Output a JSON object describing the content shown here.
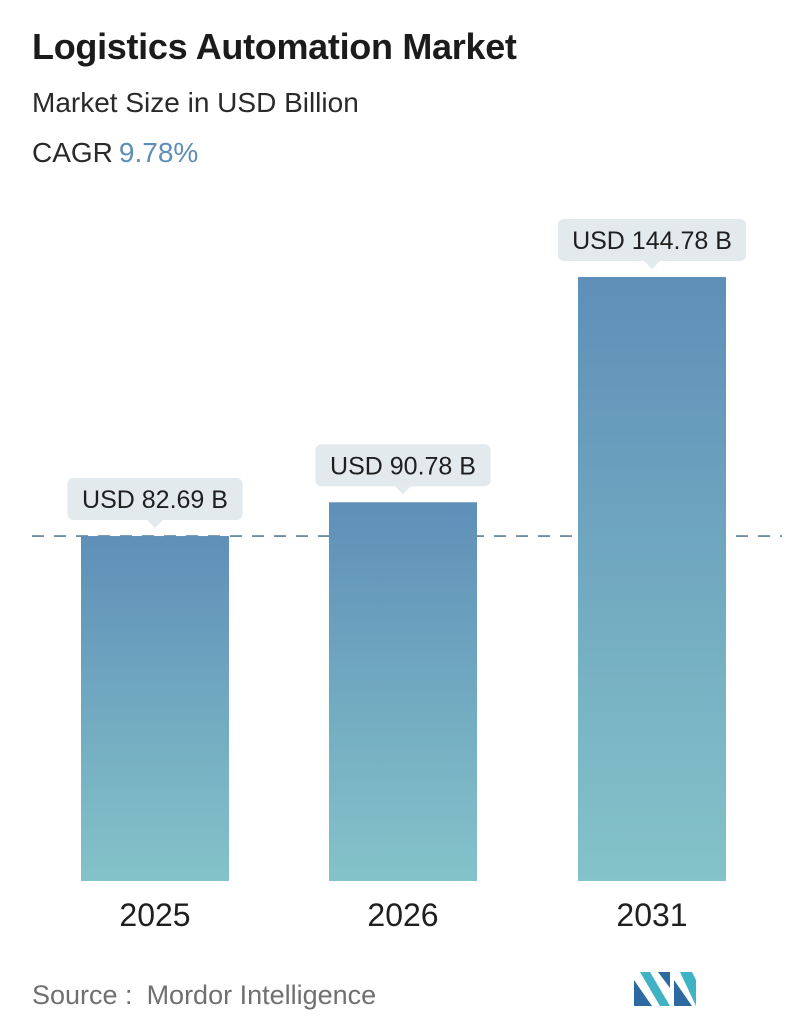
{
  "header": {
    "title": "Logistics Automation Market",
    "subtitle": "Market Size in USD Billion",
    "cagr_label": "CAGR",
    "cagr_value": "9.78%"
  },
  "chart_data": {
    "type": "bar",
    "categories": [
      "2025",
      "2026",
      "2031"
    ],
    "values": [
      82.69,
      90.78,
      144.78
    ],
    "value_labels": [
      "USD 82.69 B",
      "USD 90.78 B",
      "USD 144.78 B"
    ],
    "reference_line": 82.69,
    "ylim": [
      0,
      150
    ],
    "grid": false
  },
  "footer": {
    "source_label": "Source :",
    "source_name": "Mordor Intelligence"
  },
  "colors": {
    "bar_top": "#5f8fb8",
    "bar_bottom": "#84c3c9",
    "label_bg": "#e2eaee",
    "accent": "#5e8db5",
    "dash": "#5b7d93"
  }
}
